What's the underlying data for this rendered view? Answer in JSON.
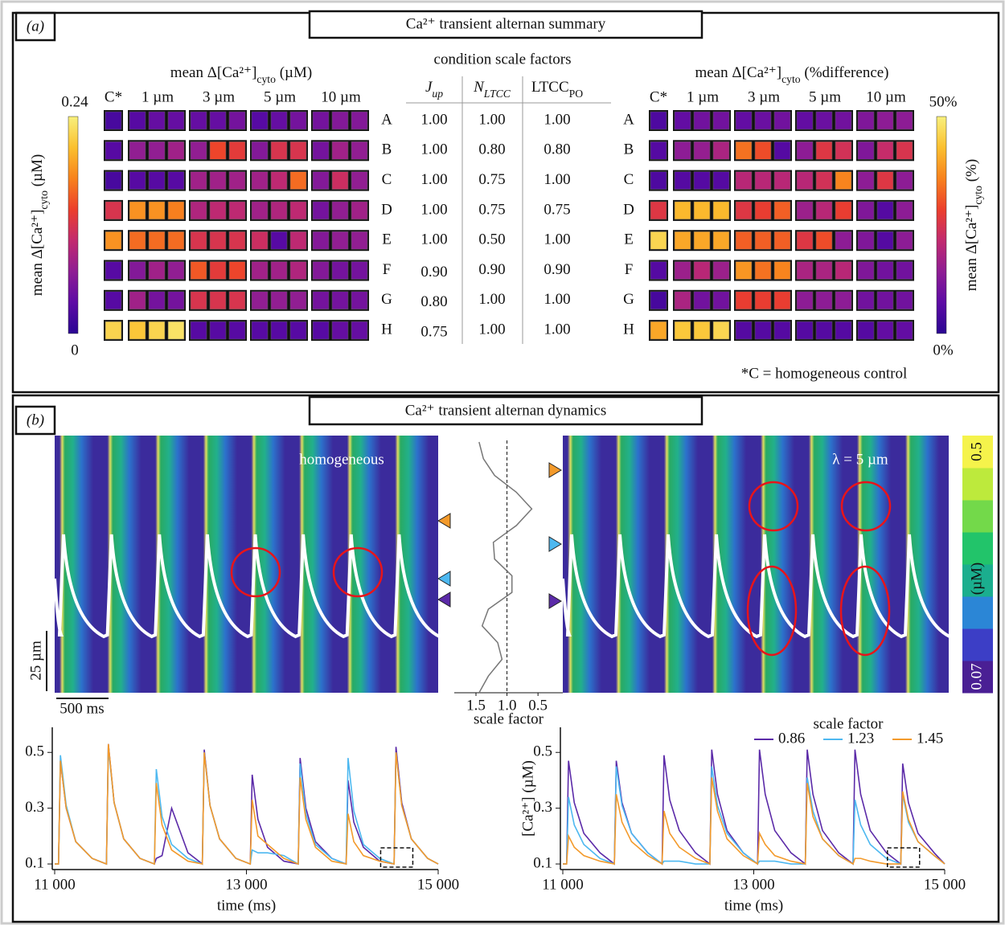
{
  "panel_a": {
    "label": "(a)",
    "title": "Ca²⁺ transient alternan summary",
    "footnote": "*C = homogeneous control",
    "table": {
      "title": "condition scale factors",
      "headers": [
        [
          "J",
          "up"
        ],
        [
          "N",
          "LTCC"
        ],
        [
          "LTCC",
          "PO"
        ]
      ],
      "values": [
        [
          "1.00",
          "1.00",
          "1.00"
        ],
        [
          "1.00",
          "0.80",
          "0.80"
        ],
        [
          "1.00",
          "0.75",
          "1.00"
        ],
        [
          "1.00",
          "0.75",
          "0.75"
        ],
        [
          "1.00",
          "0.50",
          "1.00"
        ],
        [
          "0.90",
          "0.90",
          "0.90"
        ],
        [
          "0.80",
          "1.00",
          "1.00"
        ],
        [
          "0.75",
          "1.00",
          "1.00"
        ]
      ]
    }
  },
  "panel_b": {
    "label": "(b)",
    "title": "Ca²⁺ transient alternan dynamics",
    "image_labels": [
      "homogeneous",
      "λ = 5 µm"
    ],
    "scale_bars": [
      "25 µm",
      "500 ms"
    ],
    "colorbar": {
      "label": "(µM)",
      "clim": [
        0.07,
        0.5
      ],
      "ticks": [
        0.07,
        0.5
      ],
      "colors": [
        "#4a1f94",
        "#3c3ec6",
        "#2b86d6",
        "#1bae8e",
        "#22c46a",
        "#73d94a",
        "#bdea3c",
        "#f5f34b"
      ]
    }
  },
  "chart_data": [
    {
      "type": "heatmap",
      "title": [
        "mean Δ[Ca²⁺]",
        "cyto",
        " (µM)"
      ],
      "colorbar_label": [
        "mean Δ[Ca²⁺]",
        "cyto",
        " (µM)"
      ],
      "column_groups": [
        "C*",
        "1 µm",
        "3 µm",
        "5 µm",
        "10 µm"
      ],
      "rows": [
        "A",
        "B",
        "C",
        "D",
        "E",
        "F",
        "G",
        "H"
      ],
      "values": [
        [
          [
            0.02
          ],
          [
            0.03,
            0.04,
            0.04
          ],
          [
            0.04,
            0.04,
            0.05
          ],
          [
            0.03,
            0.04,
            0.05
          ],
          [
            0.05,
            0.06,
            0.06
          ]
        ],
        [
          [
            0.03
          ],
          [
            0.07,
            0.07,
            0.08
          ],
          [
            0.07,
            0.14,
            0.13
          ],
          [
            0.06,
            0.12,
            0.12
          ],
          [
            0.05,
            0.08,
            0.07
          ]
        ],
        [
          [
            0.02
          ],
          [
            0.03,
            0.03,
            0.03
          ],
          [
            0.08,
            0.08,
            0.08
          ],
          [
            0.08,
            0.1,
            0.16
          ],
          [
            0.06,
            0.11,
            0.07
          ]
        ],
        [
          [
            0.12
          ],
          [
            0.18,
            0.18,
            0.17
          ],
          [
            0.09,
            0.1,
            0.1
          ],
          [
            0.08,
            0.09,
            0.1
          ],
          [
            0.05,
            0.07,
            0.08
          ]
        ],
        [
          [
            0.18
          ],
          [
            0.16,
            0.16,
            0.16
          ],
          [
            0.12,
            0.12,
            0.12
          ],
          [
            0.11,
            0.03,
            0.1
          ],
          [
            0.06,
            0.07,
            0.07
          ]
        ],
        [
          [
            0.03
          ],
          [
            0.06,
            0.08,
            0.07
          ],
          [
            0.15,
            0.13,
            0.14
          ],
          [
            0.08,
            0.08,
            0.09
          ],
          [
            0.06,
            0.05,
            0.05
          ]
        ],
        [
          [
            0.03
          ],
          [
            0.08,
            0.05,
            0.05
          ],
          [
            0.12,
            0.12,
            0.12
          ],
          [
            0.07,
            0.07,
            0.07
          ],
          [
            0.05,
            0.05,
            0.05
          ]
        ],
        [
          [
            0.22
          ],
          [
            0.21,
            0.22,
            0.23
          ],
          [
            0.03,
            0.03,
            0.03
          ],
          [
            0.03,
            0.03,
            0.03
          ],
          [
            0.03,
            0.04,
            0.04
          ]
        ]
      ],
      "colormap": [
        "#2a0593",
        "#5d0ba5",
        "#8f1d94",
        "#c22a6f",
        "#ec3f2c",
        "#f8821d",
        "#fbc02f",
        "#f8f07c"
      ],
      "clim": [
        0,
        0.24
      ],
      "cticks": [
        0,
        0.24
      ]
    },
    {
      "type": "heatmap",
      "title": [
        "mean Δ[Ca²⁺]",
        "cyto",
        " (%difference)"
      ],
      "colorbar_label": [
        "mean Δ[Ca²⁺]",
        "cyto",
        " (%)"
      ],
      "column_groups": [
        "C*",
        "1 µm",
        "3 µm",
        "5 µm",
        "10 µm"
      ],
      "rows": [
        "A",
        "B",
        "C",
        "D",
        "E",
        "F",
        "G",
        "H"
      ],
      "values": [
        [
          [
            5
          ],
          [
            8,
            10,
            10
          ],
          [
            8,
            9,
            10
          ],
          [
            8,
            9,
            10
          ],
          [
            12,
            14,
            14
          ]
        ],
        [
          [
            6
          ],
          [
            14,
            15,
            18
          ],
          [
            34,
            30,
            6
          ],
          [
            14,
            26,
            24
          ],
          [
            12,
            22,
            25
          ]
        ],
        [
          [
            5
          ],
          [
            6,
            6,
            6
          ],
          [
            20,
            20,
            20
          ],
          [
            20,
            24,
            36
          ],
          [
            14,
            26,
            14
          ]
        ],
        [
          [
            26
          ],
          [
            42,
            42,
            42
          ],
          [
            26,
            28,
            32
          ],
          [
            16,
            20,
            28
          ],
          [
            12,
            6,
            14
          ]
        ],
        [
          [
            46
          ],
          [
            40,
            40,
            40
          ],
          [
            32,
            32,
            32
          ],
          [
            26,
            30,
            14
          ],
          [
            12,
            6,
            14
          ]
        ],
        [
          [
            6
          ],
          [
            16,
            20,
            16
          ],
          [
            38,
            34,
            36
          ],
          [
            18,
            18,
            20
          ],
          [
            12,
            10,
            10
          ]
        ],
        [
          [
            4
          ],
          [
            18,
            10,
            10
          ],
          [
            28,
            28,
            28
          ],
          [
            14,
            14,
            14
          ],
          [
            10,
            10,
            10
          ]
        ],
        [
          [
            40
          ],
          [
            44,
            44,
            46
          ],
          [
            6,
            6,
            6
          ],
          [
            6,
            6,
            6
          ],
          [
            6,
            8,
            8
          ]
        ]
      ],
      "colormap": [
        "#2a0593",
        "#5d0ba5",
        "#8f1d94",
        "#c22a6f",
        "#ec3f2c",
        "#f8821d",
        "#fbc02f",
        "#f8f07c"
      ],
      "clim": [
        0,
        50
      ],
      "cticks": [
        {
          "value": 0,
          "label": "0%"
        },
        {
          "value": 50,
          "label": "50%"
        }
      ]
    },
    {
      "type": "profile",
      "xlabel": "scale factor",
      "values": [
        1.45,
        1.38,
        1.2,
        0.85,
        0.6,
        0.85,
        1.22,
        1.2,
        0.92,
        0.92,
        1.3,
        1.4,
        1.15,
        1.08,
        1.3,
        1.45
      ],
      "xlim": [
        1.85,
        0.1
      ],
      "xticks": [
        1.5,
        {
          "value": 1,
          "label": "1.0"
        },
        0.5
      ],
      "color": "#777777"
    },
    {
      "type": "line",
      "xlabel": "time (ms)",
      "x": [
        11000,
        11040,
        11060,
        11120,
        11220,
        11390,
        11540,
        11560,
        11620,
        11720,
        11890,
        12040,
        12060,
        12120,
        12220,
        12390,
        12540,
        12560,
        12620,
        12720,
        12890,
        13040,
        13060,
        13120,
        13220,
        13390,
        13540,
        13560,
        13620,
        13720,
        13890,
        14040,
        14060,
        14120,
        14220,
        14390,
        14540,
        14560,
        14620,
        14720,
        14890,
        15000
      ],
      "series": [
        {
          "color": "#5b2aa8",
          "values": [
            0.1,
            0.1,
            0.47,
            0.3,
            0.18,
            0.12,
            0.1,
            0.53,
            0.32,
            0.19,
            0.12,
            0.1,
            0.12,
            0.13,
            0.3,
            0.14,
            0.1,
            0.51,
            0.31,
            0.19,
            0.12,
            0.1,
            0.42,
            0.26,
            0.16,
            0.11,
            0.1,
            0.48,
            0.3,
            0.18,
            0.12,
            0.1,
            0.4,
            0.25,
            0.16,
            0.11,
            0.1,
            0.52,
            0.32,
            0.19,
            0.12,
            0.1
          ]
        },
        {
          "color": "#4db8f0",
          "values": [
            0.1,
            0.1,
            0.49,
            0.31,
            0.18,
            0.12,
            0.1,
            0.52,
            0.32,
            0.19,
            0.12,
            0.1,
            0.44,
            0.27,
            0.17,
            0.12,
            0.1,
            0.5,
            0.31,
            0.19,
            0.12,
            0.1,
            0.15,
            0.14,
            0.14,
            0.13,
            0.1,
            0.46,
            0.28,
            0.17,
            0.12,
            0.1,
            0.48,
            0.29,
            0.17,
            0.12,
            0.1,
            0.5,
            0.31,
            0.19,
            0.12,
            0.1
          ]
        },
        {
          "color": "#f39a2b",
          "values": [
            0.1,
            0.1,
            0.47,
            0.3,
            0.18,
            0.12,
            0.1,
            0.53,
            0.32,
            0.19,
            0.12,
            0.1,
            0.39,
            0.24,
            0.15,
            0.11,
            0.1,
            0.5,
            0.31,
            0.19,
            0.12,
            0.1,
            0.33,
            0.2,
            0.17,
            0.12,
            0.1,
            0.41,
            0.26,
            0.16,
            0.11,
            0.1,
            0.28,
            0.18,
            0.13,
            0.11,
            0.1,
            0.5,
            0.31,
            0.19,
            0.12,
            0.1
          ]
        }
      ],
      "xlim": [
        11000,
        15000
      ],
      "xticks": [
        {
          "value": 11000,
          "label": "11 000"
        },
        {
          "value": 13000,
          "label": "13 000"
        },
        {
          "value": 15000,
          "label": "15 000"
        }
      ],
      "ylim": [
        0.08,
        0.59
      ],
      "yticks": [
        0.1,
        0.3,
        0.5
      ]
    },
    {
      "type": "line",
      "xlabel": "time (ms)",
      "ylabel": "[Ca²⁺] (µM)",
      "legend_title": "scale factor",
      "x": [
        11000,
        11040,
        11060,
        11120,
        11220,
        11390,
        11540,
        11560,
        11620,
        11720,
        11890,
        12040,
        12060,
        12120,
        12220,
        12390,
        12540,
        12560,
        12620,
        12720,
        12890,
        13040,
        13060,
        13120,
        13220,
        13390,
        13540,
        13560,
        13620,
        13720,
        13890,
        14040,
        14060,
        14120,
        14220,
        14390,
        14540,
        14560,
        14620,
        14720,
        14890,
        15000
      ],
      "series": [
        {
          "name": "0.86",
          "color": "#5b2aa8",
          "values": [
            0.1,
            0.1,
            0.47,
            0.32,
            0.21,
            0.14,
            0.1,
            0.47,
            0.32,
            0.21,
            0.14,
            0.1,
            0.49,
            0.33,
            0.22,
            0.14,
            0.1,
            0.51,
            0.35,
            0.22,
            0.14,
            0.1,
            0.51,
            0.35,
            0.22,
            0.14,
            0.1,
            0.51,
            0.35,
            0.22,
            0.14,
            0.1,
            0.51,
            0.35,
            0.22,
            0.14,
            0.1,
            0.46,
            0.32,
            0.21,
            0.14,
            0.1
          ]
        },
        {
          "name": "1.23",
          "color": "#4db8f0",
          "values": [
            0.1,
            0.1,
            0.34,
            0.24,
            0.17,
            0.12,
            0.1,
            0.45,
            0.31,
            0.21,
            0.14,
            0.1,
            0.11,
            0.11,
            0.11,
            0.1,
            0.1,
            0.45,
            0.31,
            0.21,
            0.14,
            0.1,
            0.11,
            0.11,
            0.11,
            0.1,
            0.1,
            0.41,
            0.29,
            0.19,
            0.13,
            0.1,
            0.33,
            0.24,
            0.17,
            0.12,
            0.1,
            0.35,
            0.25,
            0.18,
            0.13,
            0.1
          ]
        },
        {
          "name": "1.45",
          "color": "#f39a2b",
          "values": [
            0.1,
            0.1,
            0.2,
            0.16,
            0.13,
            0.11,
            0.1,
            0.35,
            0.25,
            0.18,
            0.13,
            0.1,
            0.29,
            0.21,
            0.16,
            0.12,
            0.1,
            0.41,
            0.29,
            0.19,
            0.13,
            0.1,
            0.21,
            0.17,
            0.13,
            0.11,
            0.1,
            0.39,
            0.27,
            0.19,
            0.13,
            0.1,
            0.12,
            0.12,
            0.11,
            0.1,
            0.1,
            0.36,
            0.26,
            0.18,
            0.13,
            0.1
          ]
        }
      ],
      "xlim": [
        11000,
        15000
      ],
      "xticks": [
        {
          "value": 11000,
          "label": "11 000"
        },
        {
          "value": 13000,
          "label": "13 000"
        },
        {
          "value": 15000,
          "label": "15 000"
        }
      ],
      "ylim": [
        0.08,
        0.59
      ],
      "yticks": [
        0.1,
        0.3,
        0.5
      ]
    }
  ]
}
